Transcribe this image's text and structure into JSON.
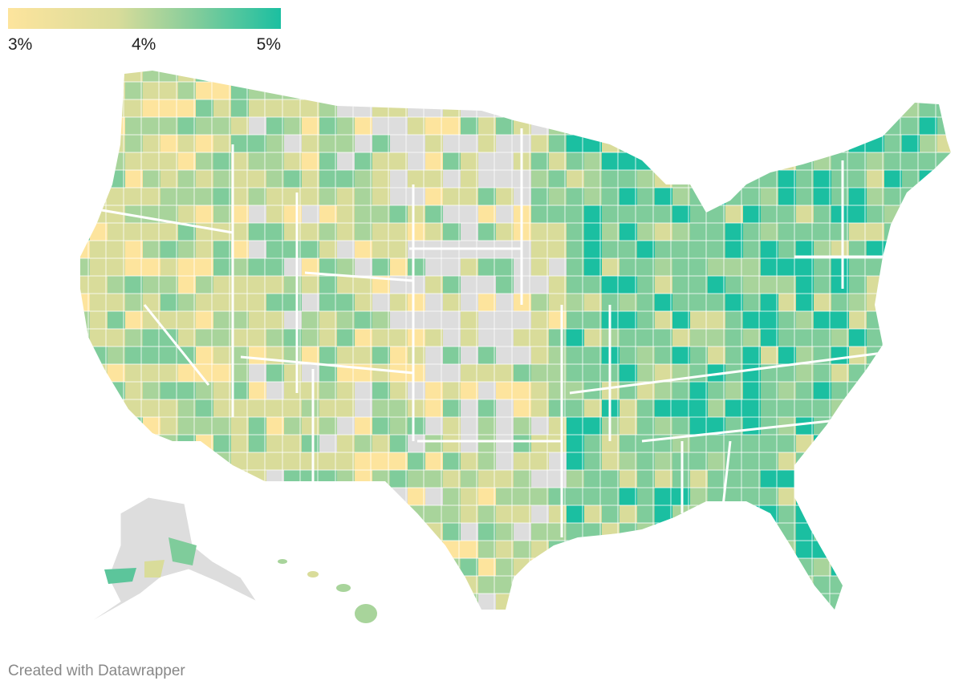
{
  "legend": {
    "stops": [
      "3%",
      "4%",
      "5%"
    ],
    "colors": [
      "#fde49d",
      "#d9dc9a",
      "#7fcc9b",
      "#1bbfa1"
    ]
  },
  "map": {
    "no_data_color": "#dddddd",
    "border_color": "#ffffff"
  },
  "footer": {
    "credit": "Created with Datawrapper"
  }
}
